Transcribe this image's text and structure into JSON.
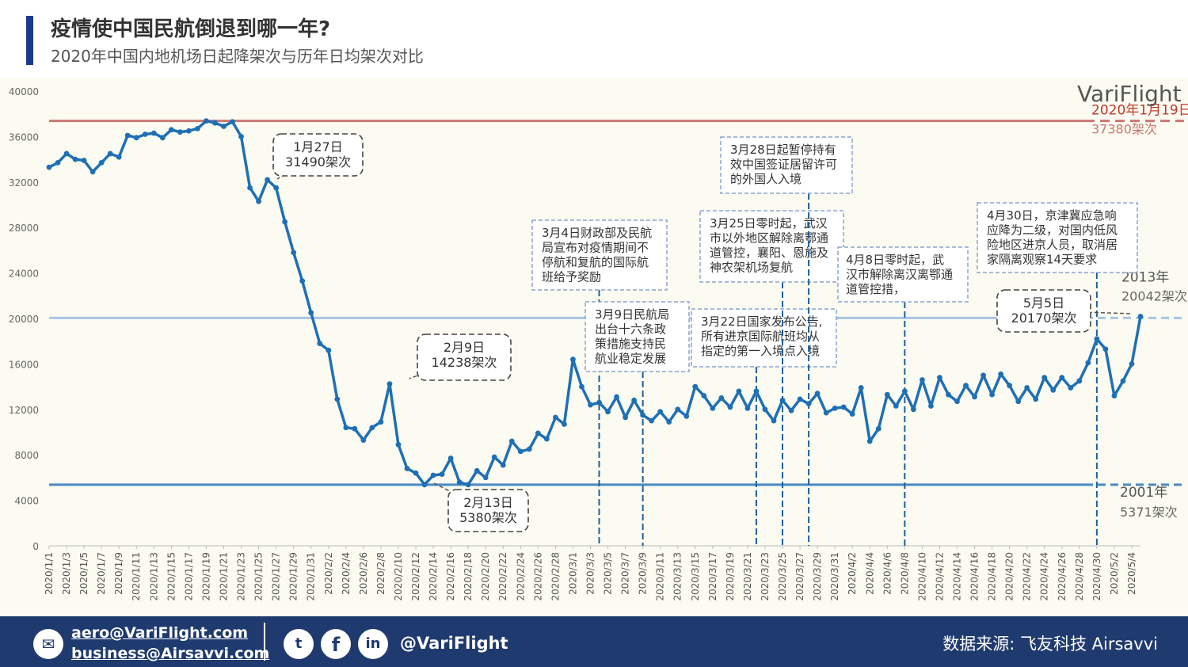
{
  "header": {
    "title": "疫情使中国民航倒退到哪一年?",
    "subtitle": "2020年中国内地机场日起降架次与历年日均架次对比"
  },
  "brand": {
    "logo_text": "VariFlight"
  },
  "colors": {
    "line": "#1f6fb5",
    "ref_2020": "#c97872",
    "ref_2013": "#a9c6e4",
    "ref_2001": "#4a8ac4",
    "footer": "#1f3a6f",
    "accent": "#1c3a8c"
  },
  "footer": {
    "email_1": "aero@VariFlight.com",
    "email_2": "business@Airsavvi.com",
    "handle": "@VariFlight",
    "source": "数据来源: 飞友科技 Airsavvi",
    "icons": [
      "mail-icon",
      "twitter-icon",
      "facebook-icon",
      "linkedin-icon"
    ]
  },
  "chart_data": {
    "type": "line",
    "ylim": [
      0,
      40000
    ],
    "yticks": [
      "0",
      "4000",
      "8000",
      "12000",
      "16000",
      "20000",
      "24000",
      "28000",
      "32000",
      "36000",
      "40000"
    ],
    "grid": false,
    "x_labels": [
      "2020/1/1",
      "2020/1/3",
      "2020/1/5",
      "2020/1/7",
      "2020/1/9",
      "2020/1/11",
      "2020/1/13",
      "2020/1/15",
      "2020/1/17",
      "2020/1/19",
      "2020/1/21",
      "2020/1/23",
      "2020/1/25",
      "2020/1/27",
      "2020/1/29",
      "2020/1/31",
      "2020/2/2",
      "2020/2/4",
      "2020/2/6",
      "2020/2/8",
      "2020/2/10",
      "2020/2/12",
      "2020/2/14",
      "2020/2/16",
      "2020/2/18",
      "2020/2/20",
      "2020/2/22",
      "2020/2/24",
      "2020/2/26",
      "2020/2/28",
      "2020/3/1",
      "2020/3/3",
      "2020/3/5",
      "2020/3/7",
      "2020/3/9",
      "2020/3/11",
      "2020/3/13",
      "2020/3/15",
      "2020/3/17",
      "2020/3/19",
      "2020/3/21",
      "2020/3/23",
      "2020/3/25",
      "2020/3/27",
      "2020/3/29",
      "2020/3/31",
      "2020/4/2",
      "2020/4/4",
      "2020/4/6",
      "2020/4/8",
      "2020/4/10",
      "2020/4/12",
      "2020/4/14",
      "2020/4/16",
      "2020/4/18",
      "2020/4/20",
      "2020/4/22",
      "2020/4/24",
      "2020/4/26",
      "2020/4/28",
      "2020/4/30",
      "2020/5/2",
      "2020/5/4"
    ],
    "x_start": "2020/1/1",
    "x_end": "2020/5/5",
    "series": [
      {
        "values": [
          33300,
          33700,
          34500,
          34000,
          33900,
          32900,
          33700,
          34500,
          34200,
          36100,
          35900,
          36200,
          36300,
          35900,
          36600,
          36400,
          36500,
          36700,
          37380,
          37200,
          36900,
          37300,
          36000,
          31500,
          30300,
          32200,
          31490,
          28500,
          25800,
          23300,
          20500,
          17800,
          17200,
          12900,
          10400,
          10300,
          9300,
          10400,
          10900,
          14238,
          8900,
          6800,
          6400,
          5380,
          6200,
          6300,
          7700,
          5600,
          5380,
          6600,
          6000,
          7800,
          7100,
          9200,
          8300,
          8500,
          9900,
          9400,
          11300,
          10700,
          16400,
          14000,
          12400,
          12600,
          11800,
          13100,
          11300,
          12800,
          11500,
          11000,
          11800,
          10900,
          12000,
          11400,
          14000,
          13200,
          12100,
          13000,
          12200,
          13600,
          12100,
          13600,
          12000,
          11000,
          12800,
          11900,
          12900,
          12500,
          13400,
          11700,
          12100,
          12200,
          11600,
          13900,
          9200,
          10300,
          13300,
          12300,
          13600,
          12000,
          14600,
          12300,
          14800,
          13300,
          12700,
          14100,
          13100,
          15000,
          13300,
          15100,
          14100,
          12700,
          13900,
          12900,
          14800,
          13700,
          14800,
          13900,
          14500,
          16100,
          18200,
          17300,
          13200,
          14500,
          16000,
          20170
        ]
      }
    ],
    "reference_lines": [
      {
        "value": 37380,
        "label": "2020年1月19日",
        "value_label": "37380架次"
      },
      {
        "value": 20042,
        "label": "2013年",
        "value_label": "20042架次"
      },
      {
        "value": 5371,
        "label": "2001年",
        "value_label": "5371架次"
      }
    ],
    "callouts": [
      {
        "date": "2020/1/27",
        "lines": [
          "1月27日",
          "31490架次"
        ]
      },
      {
        "date": "2020/2/9",
        "lines": [
          "2月9日",
          "14238架次"
        ]
      },
      {
        "date": "2020/2/13",
        "lines": [
          "2月13日",
          "5380架次"
        ]
      },
      {
        "date": "2020/5/5",
        "lines": [
          "5月5日",
          "20170架次"
        ]
      }
    ],
    "events": [
      {
        "date": "2020/3/4",
        "lines": [
          "3月4日财政部及民航",
          "局宣布对疫情期间不",
          "停航和复航的国际航",
          "班给予奖励"
        ]
      },
      {
        "date": "2020/3/9",
        "lines": [
          "3月9日民航局",
          "出台十六条政",
          "策措施支持民",
          "航业稳定发展"
        ]
      },
      {
        "date": "2020/3/22",
        "lines": [
          "3月22日国家发布公告,",
          "所有进京国际航班均从",
          "指定的第一入境点入境"
        ]
      },
      {
        "date": "2020/3/25",
        "lines": [
          "3月25日零时起，武汉",
          "市以外地区解除离鄂通",
          "道管控，襄阳、恩施及",
          "神农架机场复航"
        ]
      },
      {
        "date": "2020/3/28",
        "lines": [
          "3月28日起暂停持有",
          "效中国签证居留许可",
          "的外国人入境"
        ]
      },
      {
        "date": "2020/4/8",
        "lines": [
          "4月8日零时起，武",
          "汉市解除离汉离鄂通",
          "道管控措，"
        ]
      },
      {
        "date": "2020/4/30",
        "lines": [
          "4月30日，京津冀应急响",
          "应降为二级，对国内低风",
          "险地区进京人员，取消居",
          "家隔离观察14天要求"
        ]
      }
    ]
  }
}
